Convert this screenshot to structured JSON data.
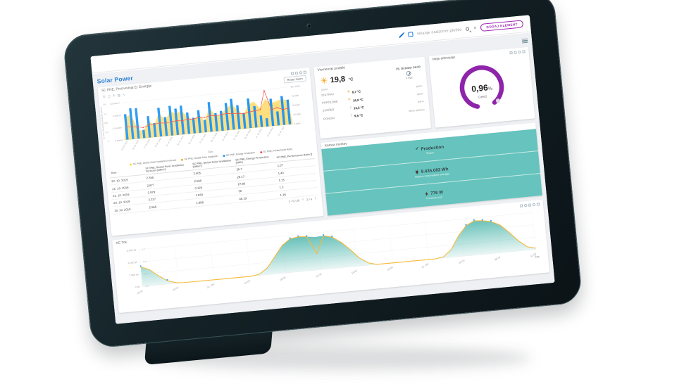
{
  "icons": {
    "close": "×",
    "sort_asc": "↑",
    "chevron_left": "‹",
    "chevron_right": "›",
    "sun": "☀",
    "moon": "☽",
    "check": "✓",
    "chart_toolbar_glyphs": [
      "⊙",
      "▢",
      "↻",
      "▥",
      "∿"
    ],
    "chart_toolbar_names": [
      "zoom-icon",
      "dataview-icon",
      "restore-icon",
      "bar-type-icon",
      "line-type-icon"
    ]
  },
  "topbar": {
    "search_placeholder": "iskanje nadzorne plošče",
    "add_button": "DODAJ ELEMENT"
  },
  "dashboard": {
    "title": "Solar Power",
    "chart_panel": {
      "title": "SC PNE, Proizvodnja El. Energije",
      "reset_zoom": "Reset zoom"
    },
    "table": {
      "headers": [
        "Time",
        "SC PNE, Global Solar Irradiation Forecast [kW/m²]",
        "SC PNE, Global Solar Irradiation [kW/m²]",
        "SC PNE, Energy Production [kWh]",
        "SC PNE, Performance Ratio []"
      ],
      "rows": [
        [
          "22. 10. 2019",
          "2.355",
          "2.405",
          "25.7",
          "1.07"
        ],
        [
          "21. 10. 2019",
          "2.877",
          "2.568",
          "26.17",
          "1.43"
        ],
        [
          "21. 10. 2019",
          "2.979",
          "3.129",
          "27.86",
          "1.15"
        ],
        [
          "20. 10. 2019",
          "2.227",
          "1.939",
          "30",
          "1.3"
        ],
        [
          "19. 10. 2019",
          "2.566",
          "1.858",
          "45.19",
          "1.16"
        ]
      ],
      "pagination": {
        "range": "1 - 5 / 20",
        "page": "2 / 4"
      }
    },
    "weather": {
      "title": "Vremenski podatki",
      "current": {
        "temp": "19,8",
        "unit": "°C",
        "condition": "jasno",
        "datetime": "25. October 16:00",
        "wind": "1 m/s"
      },
      "forecast": [
        {
          "period": "ZJUTRAJ",
          "icon": "sun",
          "temp": "8,7 °C",
          "condition": "jasno"
        },
        {
          "period": "POPOLDNE",
          "icon": "sun",
          "temp": "16,8 °C",
          "condition": "jasno"
        },
        {
          "period": "ZVEČER",
          "icon": "moon",
          "temp": "16,5 °C",
          "condition": "jasno"
        },
        {
          "period": "PONOČI",
          "icon": "moon",
          "temp": "9,5 °C",
          "condition": "delno oblačno"
        }
      ]
    },
    "gauge": {
      "title": "Moje delovanje",
      "value": "0,96",
      "unit": "%",
      "label": "Dele2",
      "percent": 0.96,
      "color": "#8e24aa"
    },
    "energy_card": {
      "title": "Kartica meritev",
      "bg": "#66c3bd",
      "rows": [
        {
          "icon": "check",
          "value": "Production",
          "sub": "Status"
        },
        {
          "icon": "plug",
          "value": "9.435.083 Wh",
          "sub": "Skupna proizvedena energija"
        },
        {
          "icon": "bolt",
          "value": "776 W",
          "sub": "Trenutna moč"
        }
      ]
    },
    "ac_panel": {
      "title": "AC Tok"
    }
  },
  "chart_data": [
    {
      "type": "bar",
      "title": "SC PNE, Proizvodnja El. Energije",
      "xlabel": "Čas",
      "x_ticks": [
        "23. 09. 2019",
        "25. 09. 2019",
        "27. 09. 2019",
        "29. 09. 2019",
        "01. 10. 2019",
        "03. 10. 2019",
        "05. 10. 2019",
        "07. 10. 2019",
        "09. 10. 2019",
        "11. 10. 2019",
        "13. 10. 2019",
        "15. 10. 2019",
        "17. 10. 2019",
        "19. 10. 2019",
        "21. 10. 2019"
      ],
      "axes": {
        "y_left_outer": [
          "1,6",
          "1,2",
          "0,8",
          "0,4",
          "0"
        ],
        "y_left_inner": [
          "4,5 kW/m²",
          "3 kW/m²",
          "1,5 kW/m²",
          "0 kW/m²"
        ],
        "y_right": [
          "90,1 kWh",
          "75 kWh",
          "50 kWh",
          "25 kWh",
          "0 kWh"
        ],
        "left_title": "SC PNE, Global Solar Irradiation [kW/m²]"
      },
      "legend_position": "bottom",
      "series": [
        {
          "name": "SC PNE, Global Solar Irradiation Forecast",
          "type": "area",
          "color": "#fdd835",
          "ylim": [
            0,
            5
          ],
          "values": [
            3.1,
            3.3,
            1.3,
            0.9,
            2.3,
            1.6,
            3.2,
            2.1,
            3.3,
            2.9,
            3.2,
            2.4,
            1.7,
            2.5,
            1.5,
            3.3,
            2.0,
            2.2,
            3.0,
            3.4,
            2.6,
            1.8,
            3.3,
            3.5,
            2.5,
            3.7,
            3.1,
            3.3,
            3.5,
            3.2
          ]
        },
        {
          "name": "SC PNE, Global Solar Irradiation",
          "type": "area",
          "color": "#f9a825",
          "ylim": [
            0,
            5
          ],
          "values": [
            2.9,
            3.2,
            1.1,
            0.8,
            2.1,
            1.5,
            3.0,
            2.0,
            3.1,
            2.8,
            3.0,
            2.2,
            1.6,
            2.4,
            1.3,
            3.1,
            1.9,
            2.1,
            2.9,
            3.2,
            2.5,
            1.7,
            3.1,
            3.3,
            2.4,
            3.5,
            3.0,
            3.1,
            3.4,
            3.0
          ]
        },
        {
          "name": "SC PNE, Energy Production",
          "type": "bar",
          "color": "#2196f3",
          "ylim": [
            0,
            90
          ],
          "values": [
            62,
            75,
            74,
            20,
            52,
            34,
            70,
            46,
            72,
            64,
            70,
            52,
            38,
            55,
            30,
            72,
            44,
            48,
            66,
            75,
            58,
            38,
            72,
            52,
            28,
            20,
            66,
            34,
            70,
            60
          ]
        },
        {
          "name": "SC PNE, Performance Ratio",
          "type": "line",
          "color": "#ef5350",
          "ylim": [
            0,
            3
          ],
          "values": [
            1.05,
            1.0,
            0.95,
            0.85,
            1.0,
            1.05,
            1.1,
            1.05,
            1.1,
            1.15,
            1.1,
            1.2,
            1.15,
            1.25,
            1.2,
            1.3,
            1.25,
            1.3,
            1.35,
            1.3,
            1.25,
            1.2,
            1.3,
            1.35,
            1.4,
            2.9,
            1.3,
            1.45,
            1.25,
            1.3
          ]
        }
      ]
    },
    {
      "type": "area",
      "title": "AC Tok",
      "xlabel": "Čas",
      "x_ticks": [
        "16:00",
        "20:00",
        "21. Okt",
        "04:00",
        "08:00",
        "12:00",
        "16:00",
        "20:00",
        "22. Okt",
        "04:00",
        "08:00",
        "12:00"
      ],
      "axes": {
        "y_left": [
          "3.000 W",
          "2.000 W",
          "1.000 W",
          "0 W"
        ],
        "y_inner": [
          "1,2",
          "0,8",
          "0,4",
          "0,0"
        ]
      },
      "ylim": [
        0,
        3200
      ],
      "marker_color": "#42a5f5",
      "marker_indices": [
        0,
        3,
        18,
        19,
        20,
        22,
        23,
        39,
        40,
        41,
        42
      ],
      "series": [
        {
          "name": "AC Moč",
          "type": "area",
          "color": "#4db6ac",
          "values": [
            1700,
            1400,
            800,
            300,
            60,
            0,
            0,
            0,
            0,
            0,
            0,
            0,
            0,
            0,
            120,
            600,
            1500,
            2400,
            2900,
            3000,
            2950,
            2850,
            2900,
            2700,
            2200,
            1500,
            700,
            200,
            0,
            0,
            0,
            0,
            0,
            0,
            0,
            0,
            120,
            700,
            1800,
            2600,
            2950,
            2900,
            2750,
            2400,
            1700,
            900,
            300,
            100
          ]
        },
        {
          "name": "AC Tok",
          "type": "line",
          "color": "#f6b93b",
          "values": [
            1700,
            1400,
            800,
            300,
            60,
            0,
            0,
            0,
            0,
            0,
            0,
            0,
            0,
            0,
            120,
            600,
            1500,
            2400,
            2900,
            3000,
            2950,
            1400,
            2900,
            2700,
            2200,
            1500,
            700,
            200,
            0,
            0,
            0,
            0,
            0,
            0,
            0,
            0,
            120,
            700,
            1800,
            2600,
            2950,
            2900,
            2750,
            2400,
            1700,
            900,
            300,
            100
          ]
        }
      ]
    }
  ]
}
